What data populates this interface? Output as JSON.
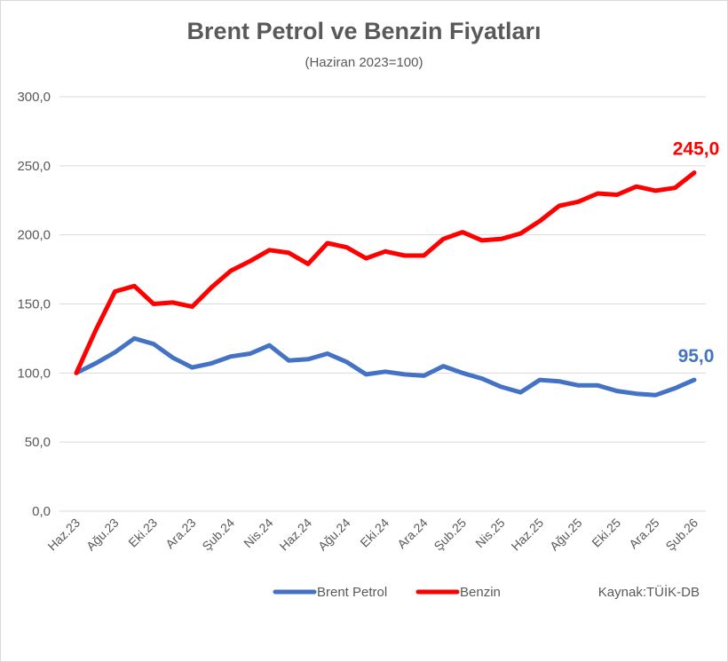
{
  "title": "Brent Petrol ve Benzin Fiyatları",
  "subtitle": "(Haziran 2023=100)",
  "source": "Kaynak:TÜİK-DB",
  "colors": {
    "brent": "#4472C4",
    "benzin": "#FF0000",
    "grid": "#d9d9d9",
    "text": "#595959"
  },
  "chart_data": {
    "type": "line",
    "title": "Brent Petrol ve Benzin Fiyatları",
    "subtitle": "(Haziran 2023=100)",
    "ylim": [
      0,
      300
    ],
    "yticks": [
      "0,0",
      "50,0",
      "100,0",
      "150,0",
      "200,0",
      "250,0",
      "300,0"
    ],
    "grid": true,
    "legend": "bottom",
    "x": [
      "Haz.23",
      "Tem.23",
      "Ağu.23",
      "Eyl.23",
      "Eki.23",
      "Kas.23",
      "Ara.23",
      "Oca.24",
      "Şub.24",
      "Mar.24",
      "Nis.24",
      "May.24",
      "Haz.24",
      "Tem.24",
      "Ağu.24",
      "Eyl.24",
      "Eki.24",
      "Kas.24",
      "Ara.24",
      "Oca.25",
      "Şub.25",
      "Mar.25",
      "Nis.25",
      "May.25",
      "Haz.25",
      "Tem.25",
      "Ağu.25",
      "Eyl.25",
      "Eki.25",
      "Kas.25",
      "Ara.25",
      "Oca.26",
      "Şub.26"
    ],
    "xtick_labels": [
      "Haz.23",
      "Ağu.23",
      "Eki.23",
      "Ara.23",
      "Şub.24",
      "Nis.24",
      "Haz.24",
      "Ağu.24",
      "Eki.24",
      "Ara.24",
      "Şub.25",
      "Nis.25",
      "Haz.25",
      "Ağu.25",
      "Eki.25",
      "Ara.25",
      "Şub.26"
    ],
    "series": [
      {
        "name": "Brent Petrol",
        "color": "#4472C4",
        "values": [
          100,
          107,
          115,
          125,
          121,
          111,
          104,
          107,
          112,
          114,
          120,
          109,
          110,
          114,
          108,
          99,
          101,
          99,
          98,
          105,
          100,
          96,
          90,
          86,
          95,
          94,
          91,
          91,
          87,
          85,
          84,
          89,
          95
        ],
        "end_label": "95,0"
      },
      {
        "name": "Benzin",
        "color": "#FF0000",
        "values": [
          100,
          131,
          159,
          163,
          150,
          151,
          148,
          162,
          174,
          181,
          189,
          187,
          179,
          194,
          191,
          183,
          188,
          185,
          185,
          197,
          202,
          196,
          197,
          201,
          210,
          221,
          224,
          230,
          229,
          235,
          232,
          234,
          245
        ],
        "end_label": "245,0"
      }
    ]
  }
}
